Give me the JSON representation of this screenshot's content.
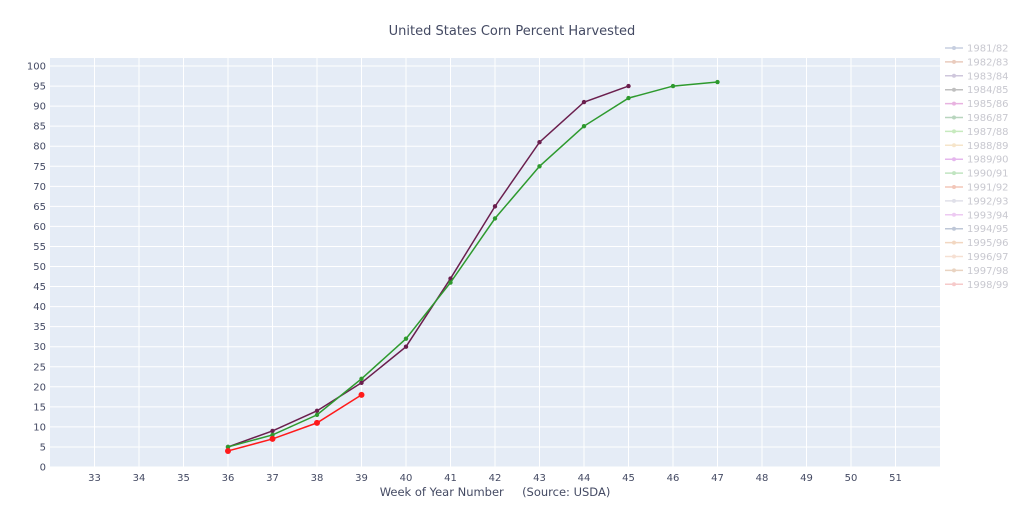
{
  "chart_data": {
    "type": "line",
    "title": "United States Corn Percent Harvested",
    "xlabel": "Week of Year Number     (Source: USDA)",
    "ylabel": "",
    "xlim": [
      32,
      52
    ],
    "ylim": [
      0,
      102
    ],
    "x_ticks": [
      33,
      34,
      35,
      36,
      37,
      38,
      39,
      40,
      41,
      42,
      43,
      44,
      45,
      46,
      47,
      48,
      49,
      50,
      51
    ],
    "y_ticks": [
      0,
      5,
      10,
      15,
      20,
      25,
      30,
      35,
      40,
      45,
      50,
      55,
      60,
      65,
      70,
      75,
      80,
      85,
      90,
      95,
      100
    ],
    "grid": true,
    "legend_position": "right",
    "series": [
      {
        "name": "1981/82",
        "color": "#9aa8c8",
        "visible": false,
        "x": [],
        "y": []
      },
      {
        "name": "1982/83",
        "color": "#d9a38a",
        "visible": false,
        "x": [],
        "y": []
      },
      {
        "name": "1983/84",
        "color": "#a89ac0",
        "visible": false,
        "x": [],
        "y": []
      },
      {
        "name": "1984/85",
        "color": "#8c8c8c",
        "visible": false,
        "x": [],
        "y": []
      },
      {
        "name": "1985/86",
        "color": "#d676c8",
        "visible": false,
        "x": [],
        "y": []
      },
      {
        "name": "1986/87",
        "color": "#7fb38a",
        "visible": false,
        "x": [],
        "y": []
      },
      {
        "name": "1987/88",
        "color": "#9ad98a",
        "visible": false,
        "x": [],
        "y": []
      },
      {
        "name": "1988/89",
        "color": "#f0d0a0",
        "visible": false,
        "x": [],
        "y": []
      },
      {
        "name": "1989/90",
        "color": "#d07ee0",
        "visible": false,
        "x": [],
        "y": []
      },
      {
        "name": "1990/91",
        "color": "#8fd08f",
        "visible": false,
        "x": [],
        "y": []
      },
      {
        "name": "1991/92",
        "color": "#e89a80",
        "visible": false,
        "x": [],
        "y": []
      },
      {
        "name": "1992/93",
        "color": "#c8c8d8",
        "visible": false,
        "x": [],
        "y": []
      },
      {
        "name": "1993/94",
        "color": "#e0a0e8",
        "visible": false,
        "x": [],
        "y": []
      },
      {
        "name": "1994/95",
        "color": "#8a9ab8",
        "visible": false,
        "x": [],
        "y": []
      },
      {
        "name": "1995/96",
        "color": "#e8b890",
        "visible": false,
        "x": [],
        "y": []
      },
      {
        "name": "1996/97",
        "color": "#f0c8b0",
        "visible": false,
        "x": [],
        "y": []
      },
      {
        "name": "1997/98",
        "color": "#d8b090",
        "visible": false,
        "x": [],
        "y": []
      },
      {
        "name": "1998/99",
        "color": "#f0a0a0",
        "visible": false,
        "x": [],
        "y": []
      },
      {
        "name": "",
        "color": "#6b1f4e",
        "visible": true,
        "marker_size": 2.2,
        "x": [
          36,
          37,
          38,
          39,
          40,
          41,
          42,
          43,
          44,
          45
        ],
        "y": [
          5,
          9,
          14,
          21,
          30,
          47,
          65,
          81,
          91,
          95
        ]
      },
      {
        "name": "",
        "color": "#2e9a2e",
        "visible": true,
        "marker_size": 2.2,
        "x": [
          36,
          37,
          38,
          39,
          40,
          41,
          42,
          43,
          44,
          45,
          46,
          47
        ],
        "y": [
          5,
          8,
          13,
          22,
          32,
          46,
          62,
          75,
          85,
          92,
          95,
          96
        ]
      },
      {
        "name": "",
        "color": "#ff1a1a",
        "visible": true,
        "marker_size": 3,
        "x": [
          36,
          37,
          38,
          39
        ],
        "y": [
          4,
          7,
          11,
          18
        ]
      }
    ]
  }
}
